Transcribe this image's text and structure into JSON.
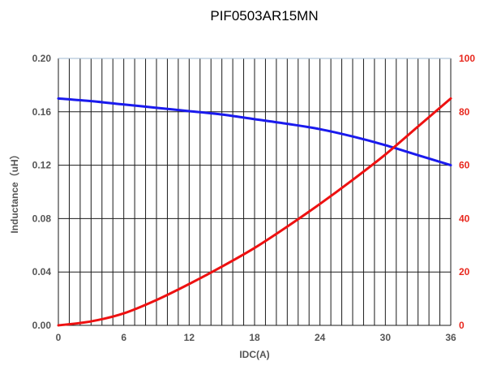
{
  "chart_data": {
    "type": "line",
    "title": "PIF0503AR15MN",
    "xlabel": "IDC(A)",
    "ylabel": "Inductance（uH）",
    "y2label": "",
    "xlim": [
      0,
      36
    ],
    "ylim": [
      0,
      0.2
    ],
    "y2lim": [
      0,
      100
    ],
    "x_ticks": [
      "0",
      "6",
      "12",
      "18",
      "24",
      "30",
      "36"
    ],
    "y_ticks": [
      "0.00",
      "0.04",
      "0.08",
      "0.12",
      "0.16",
      "0.20"
    ],
    "y2_ticks": [
      "0",
      "20",
      "40",
      "60",
      "80",
      "100"
    ],
    "grid": true,
    "colors": {
      "inductance": "#1a1aee",
      "temperature": "#ee1111",
      "right_axis": "#e8281e"
    },
    "series": [
      {
        "axis": "left",
        "x": [
          0,
          3,
          6,
          9,
          12,
          15,
          18,
          21,
          24,
          27,
          30,
          33,
          36
        ],
        "y": [
          0.17,
          0.168,
          0.1655,
          0.163,
          0.1605,
          0.158,
          0.1545,
          0.151,
          0.147,
          0.1415,
          0.135,
          0.1275,
          0.12
        ]
      },
      {
        "axis": "right",
        "x": [
          0,
          3,
          6,
          9,
          12,
          15,
          18,
          21,
          24,
          27,
          30,
          33,
          36
        ],
        "y": [
          0,
          1.5,
          4.5,
          9.5,
          15.5,
          22,
          29,
          37,
          45.5,
          54.5,
          64,
          74.5,
          85
        ]
      }
    ]
  }
}
